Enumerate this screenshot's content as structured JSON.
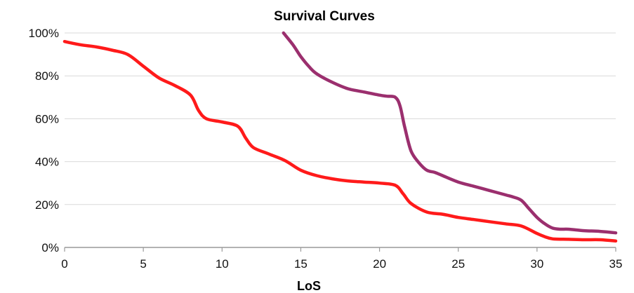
{
  "chart_data": {
    "type": "line",
    "title": "Survival Curves",
    "xlabel": "LoS",
    "ylabel": "",
    "xlim": [
      0,
      35
    ],
    "ylim": [
      0,
      100
    ],
    "x_ticks": [
      0,
      5,
      10,
      15,
      20,
      25,
      30,
      35
    ],
    "y_ticks": [
      0,
      20,
      40,
      60,
      80,
      100
    ],
    "y_tick_labels": [
      "0%",
      "20%",
      "40%",
      "60%",
      "80%",
      "100%"
    ],
    "grid": "horizontal",
    "legend": "none",
    "series": [
      {
        "color": "#ff1a1a",
        "x": [
          0,
          1,
          2,
          3,
          4,
          5,
          6,
          7,
          8,
          8.5,
          9,
          10,
          11,
          11.5,
          12,
          13,
          14,
          15,
          16,
          17,
          18,
          19,
          20,
          21,
          21.5,
          22,
          23,
          24,
          25,
          26,
          27,
          28,
          29,
          30,
          30.5,
          31,
          32,
          33,
          34,
          35
        ],
        "y": [
          96,
          94.5,
          93.5,
          92,
          90,
          84.5,
          79,
          75.5,
          71,
          64,
          60,
          58.5,
          56.5,
          51,
          46.5,
          43.5,
          40.5,
          36,
          33.5,
          32,
          31,
          30.5,
          30,
          29,
          25,
          20.5,
          16.5,
          15.5,
          14,
          13,
          12,
          11,
          10,
          6.5,
          5,
          4,
          3.8,
          3.6,
          3.6,
          3
        ]
      },
      {
        "color": "#9b2f6e",
        "x": [
          13.9,
          14.5,
          15,
          15.5,
          16,
          17,
          18,
          19,
          20,
          20.5,
          21,
          21.3,
          21.6,
          22,
          22.5,
          23,
          23.5,
          24,
          25,
          26,
          27,
          28,
          28.5,
          29,
          29.5,
          30,
          30.5,
          31,
          31.5,
          32,
          33,
          34,
          35
        ],
        "y": [
          100,
          94.5,
          89,
          84.5,
          81,
          77,
          74,
          72.5,
          71,
          70.5,
          70,
          66,
          56,
          45,
          39.5,
          36,
          35,
          33.5,
          30.5,
          28.5,
          26.5,
          24.5,
          23.5,
          22,
          18,
          14,
          11,
          9,
          8.5,
          8.5,
          7.8,
          7.5,
          6.8
        ]
      }
    ]
  }
}
